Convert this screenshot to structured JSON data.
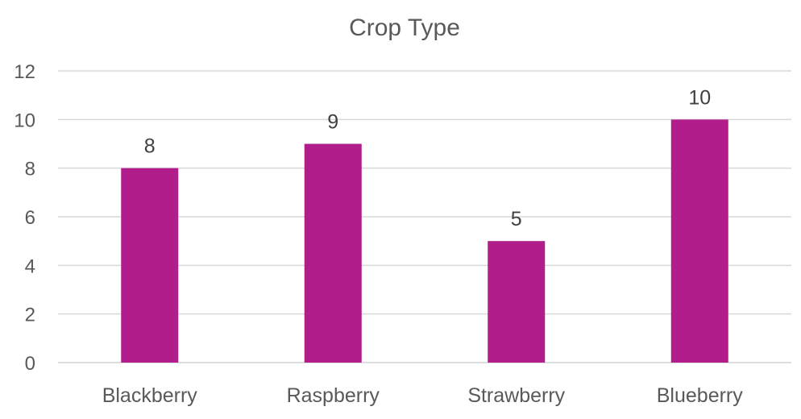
{
  "chart_data": {
    "type": "bar",
    "title": "Crop Type",
    "xlabel": "",
    "ylabel": "",
    "categories": [
      "Blackberry",
      "Raspberry",
      "Strawberry",
      "Blueberry"
    ],
    "values": [
      8,
      9,
      5,
      10
    ],
    "data_labels": [
      "8",
      "9",
      "5",
      "10"
    ],
    "ylim": [
      0,
      12
    ],
    "yticks": [
      0,
      2,
      4,
      6,
      8,
      10,
      12
    ],
    "ytick_labels": [
      "0",
      "2",
      "4",
      "6",
      "8",
      "10",
      "12"
    ],
    "grid": true,
    "legend": "none",
    "bar_color": "#B11E8C",
    "grid_color": "#D9D9D9",
    "text_color": "#595959"
  }
}
